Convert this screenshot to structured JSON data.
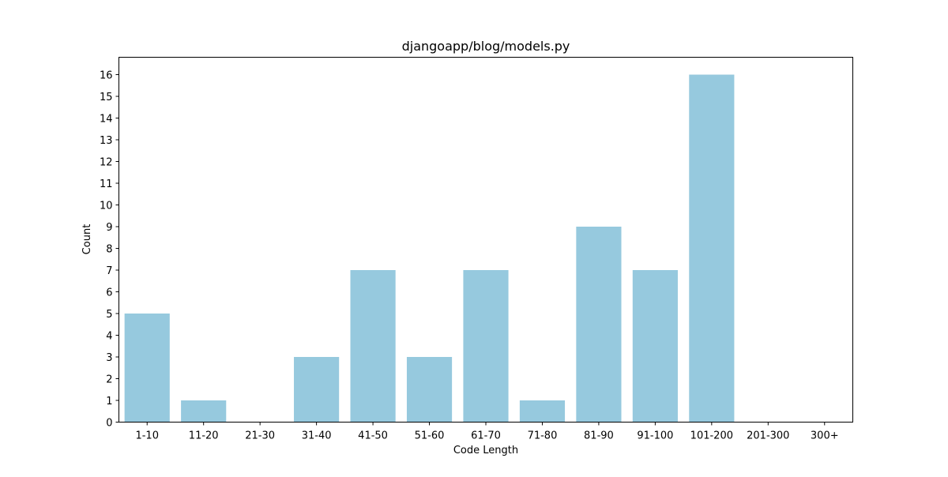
{
  "chart_data": {
    "type": "bar",
    "title": "djangoapp/blog/models.py",
    "xlabel": "Code Length",
    "ylabel": "Count",
    "categories": [
      "1-10",
      "11-20",
      "21-30",
      "31-40",
      "41-50",
      "51-60",
      "61-70",
      "71-80",
      "81-90",
      "91-100",
      "101-200",
      "201-300",
      "300+"
    ],
    "values": [
      5,
      1,
      0,
      3,
      7,
      3,
      7,
      1,
      9,
      7,
      16,
      0,
      0
    ],
    "ylim": [
      0,
      16.8
    ],
    "yticks": [
      0,
      1,
      2,
      3,
      4,
      5,
      6,
      7,
      8,
      9,
      10,
      11,
      12,
      13,
      14,
      15,
      16
    ],
    "bar_color": "#96c9de",
    "grid": false,
    "legend": "none"
  }
}
